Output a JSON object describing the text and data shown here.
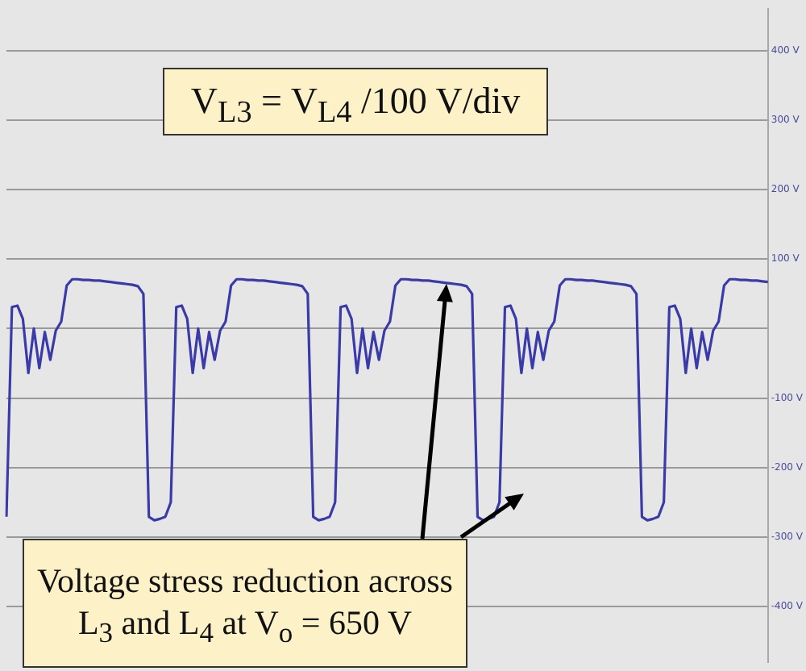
{
  "chart_data": {
    "type": "line",
    "annotations": [
      "V$_{L3}$ = V$_{L4}$ /100 V/div",
      "Voltage stress reduction across L$_{3}$ and L$_{4}$ at V$_{o}$ = 650 V"
    ],
    "categories": [
      null,
      null,
      null,
      null,
      null,
      null,
      null,
      null,
      null,
      null,
      null,
      null,
      null,
      null,
      null,
      null,
      null,
      null,
      null,
      null,
      null,
      null,
      null,
      null,
      null,
      null,
      null,
      null,
      null,
      null,
      null,
      null,
      null,
      null,
      null,
      null,
      null,
      null,
      null,
      null,
      null,
      null,
      null,
      null,
      null,
      null,
      null,
      null,
      null,
      null,
      null,
      null,
      null,
      null,
      null,
      null,
      null,
      null,
      null,
      null,
      null,
      null,
      null,
      null,
      null,
      null,
      null,
      null,
      null,
      null,
      null,
      null,
      null,
      null,
      null,
      null,
      null,
      null,
      null,
      null,
      null,
      null,
      null,
      null,
      null,
      null,
      null,
      null,
      null,
      null,
      null,
      null,
      null,
      null,
      null,
      null,
      null,
      null,
      null,
      null,
      null,
      null,
      null,
      null,
      null,
      null,
      null,
      null,
      null,
      null,
      null,
      null,
      null,
      null,
      null,
      null,
      null,
      null,
      null,
      null,
      null,
      null,
      null,
      null,
      null,
      null,
      null,
      null,
      null,
      null,
      null,
      null,
      null,
      null,
      null,
      null,
      null,
      null,
      null,
      null
    ],
    "series": [
      {
        "color": "#3a3aa8",
        "values": [
          -271,
          31,
          33,
          14,
          -64,
          0,
          -57,
          -5,
          -45,
          -3,
          10,
          62,
          71,
          71,
          70,
          70,
          69,
          69,
          68,
          67,
          66,
          65,
          64,
          63,
          61,
          50,
          -271,
          -276,
          -274,
          -271,
          -250,
          31,
          33,
          14,
          -64,
          0,
          -57,
          -5,
          -45,
          -3,
          10,
          62,
          71,
          71,
          70,
          70,
          69,
          69,
          68,
          67,
          66,
          65,
          64,
          63,
          61,
          50,
          -271,
          -276,
          -274,
          -271,
          -250,
          31,
          33,
          14,
          -64,
          0,
          -57,
          -5,
          -45,
          -3,
          10,
          62,
          71,
          71,
          70,
          70,
          69,
          69,
          68,
          67,
          66,
          65,
          64,
          63,
          61,
          50,
          -271,
          -276,
          -274,
          -271,
          -250,
          31,
          33,
          14,
          -64,
          0,
          -57,
          -5,
          -45,
          -3,
          10,
          62,
          71,
          71,
          70,
          70,
          69,
          69,
          68,
          67,
          66,
          65,
          64,
          63,
          61,
          50,
          -271,
          -276,
          -274,
          -271,
          -250,
          31,
          33,
          14,
          -64,
          0,
          -57,
          -5,
          -45,
          -3,
          10,
          62,
          71,
          71,
          70,
          70,
          69,
          69,
          68,
          67
        ]
      }
    ],
    "ylim": [
      -480,
      460
    ],
    "yticks": [
      {
        "value": -400,
        "label": "-400 V"
      },
      {
        "value": -300,
        "label": "-300 V"
      },
      {
        "value": -200,
        "label": "-200 V"
      },
      {
        "value": -100,
        "label": "-100 V"
      },
      {
        "value": 0,
        "label": null
      },
      {
        "value": 100,
        "label": "100 V"
      },
      {
        "value": 200,
        "label": "200 V"
      },
      {
        "value": 300,
        "label": "300 V"
      },
      {
        "value": 400,
        "label": "400 V"
      }
    ],
    "tick_labels": "y",
    "grid": "y",
    "legend": false,
    "marker": "none",
    "line_style": "solid"
  }
}
